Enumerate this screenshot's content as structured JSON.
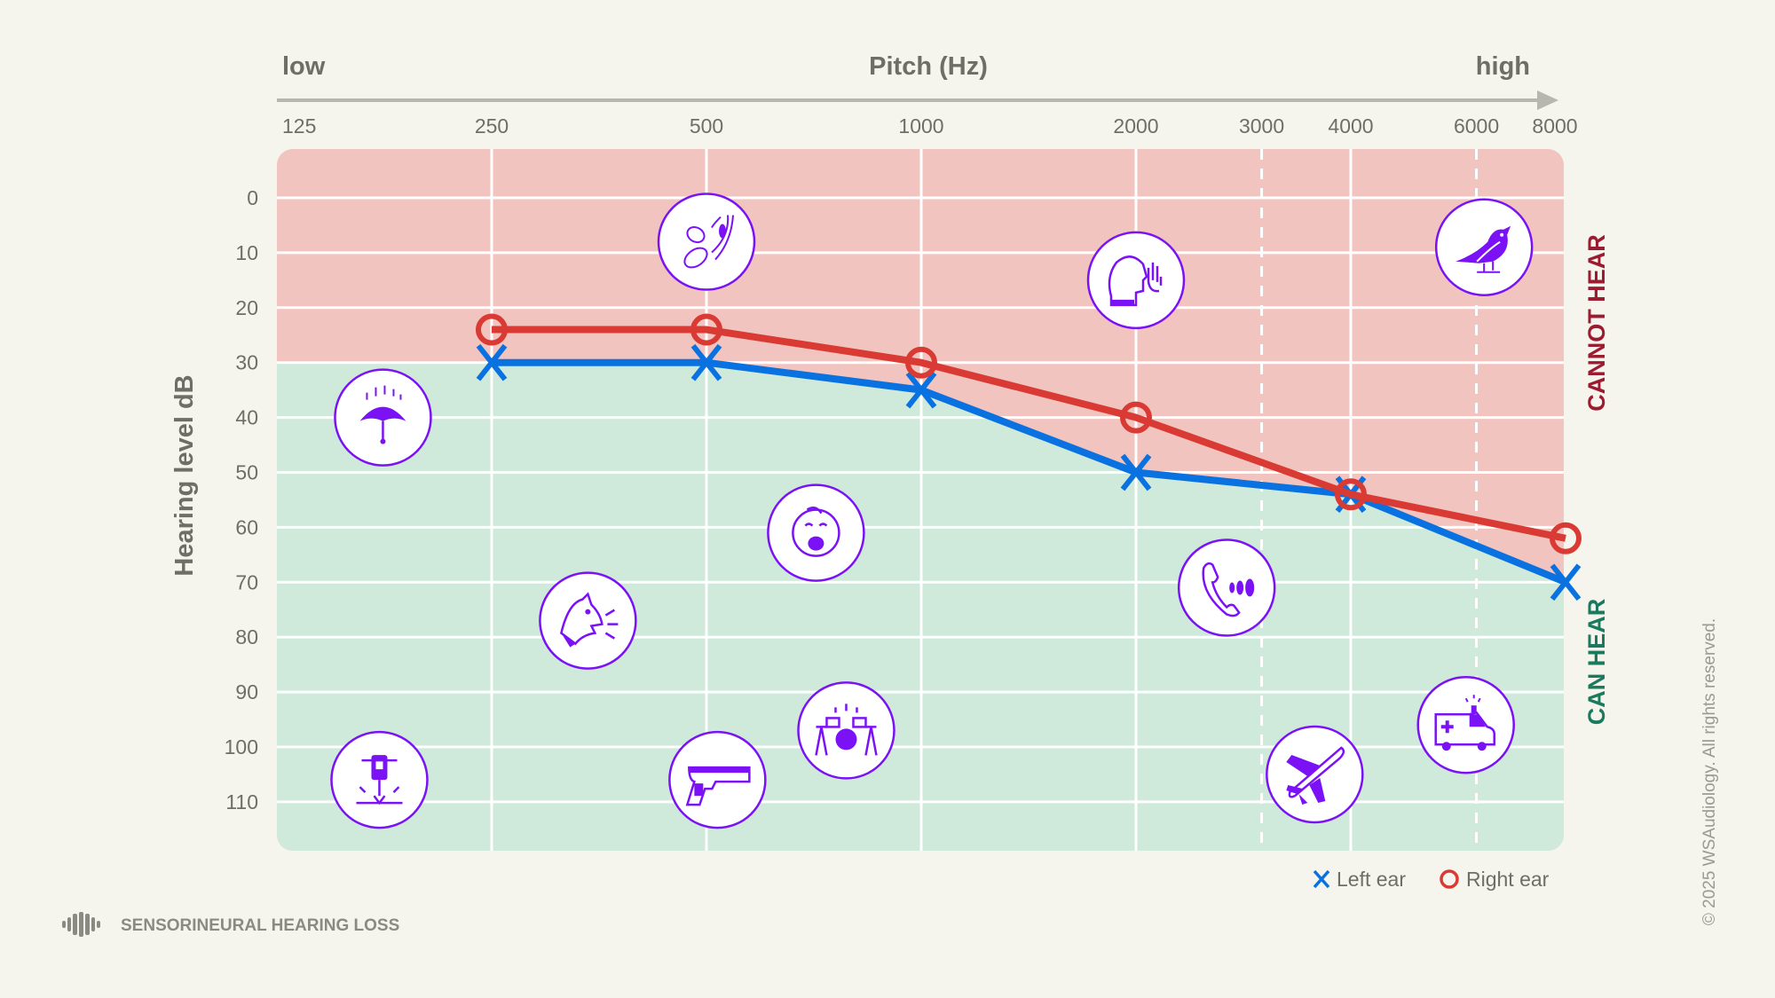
{
  "chart_data": {
    "type": "line",
    "title": "",
    "header": {
      "low_label": "low",
      "xlabel": "Pitch (Hz)",
      "high_label": "high"
    },
    "ylabel": "Hearing level dB",
    "x_scale": "log2",
    "x_ticks": [
      125,
      250,
      500,
      1000,
      2000,
      3000,
      4000,
      6000,
      8000
    ],
    "x_ticks_dashed": [
      3000,
      6000
    ],
    "y_ticks": [
      0,
      10,
      20,
      30,
      40,
      50,
      60,
      70,
      80,
      90,
      100,
      110
    ],
    "y_inverted": true,
    "grid": true,
    "series": [
      {
        "name": "Left ear",
        "marker": "x",
        "color": "#0a72e0",
        "x": [
          250,
          500,
          1000,
          2000,
          4000,
          8000
        ],
        "y": [
          30,
          30,
          35,
          50,
          54,
          70
        ]
      },
      {
        "name": "Right ear",
        "marker": "o",
        "color": "#d93a33",
        "x": [
          250,
          500,
          1000,
          2000,
          4000,
          8000
        ],
        "y": [
          24,
          24,
          30,
          40,
          54,
          62
        ]
      }
    ],
    "regions": {
      "cannot_hear": {
        "label": "CANNOT HEAR",
        "fill": "#f2c4bf",
        "label_color": "#9b1b30"
      },
      "can_hear": {
        "label": "CAN HEAR",
        "fill": "#cfe9da",
        "label_color": "#1a7a5e"
      }
    },
    "legend": {
      "placement": "bottom-right",
      "items": [
        "Left ear",
        "Right ear"
      ]
    },
    "sound_examples": [
      {
        "icon": "rain-umbrella-icon",
        "freq": 176,
        "db": 40
      },
      {
        "icon": "rustling-leaves-icon",
        "freq": 500,
        "db": 8
      },
      {
        "icon": "whisper-person-icon",
        "freq": 2000,
        "db": 15
      },
      {
        "icon": "bird-icon",
        "freq": 6150,
        "db": 9
      },
      {
        "icon": "crying-baby-icon",
        "freq": 712,
        "db": 61
      },
      {
        "icon": "barking-dog-icon",
        "freq": 341,
        "db": 77
      },
      {
        "icon": "ringing-phone-icon",
        "freq": 2680,
        "db": 71
      },
      {
        "icon": "jackhammer-icon",
        "freq": 174,
        "db": 106
      },
      {
        "icon": "gun-icon",
        "freq": 518,
        "db": 106
      },
      {
        "icon": "drums-icon",
        "freq": 785,
        "db": 97
      },
      {
        "icon": "airplane-icon",
        "freq": 3560,
        "db": 105
      },
      {
        "icon": "ambulance-icon",
        "freq": 5800,
        "db": 96
      }
    ],
    "icon_color": "#7b12f5"
  },
  "footer": {
    "icon": "soundwave-icon",
    "label": "SENSORINEURAL HEARING LOSS"
  },
  "copyright": "© 2025 WSAudiology. All rights reserved."
}
